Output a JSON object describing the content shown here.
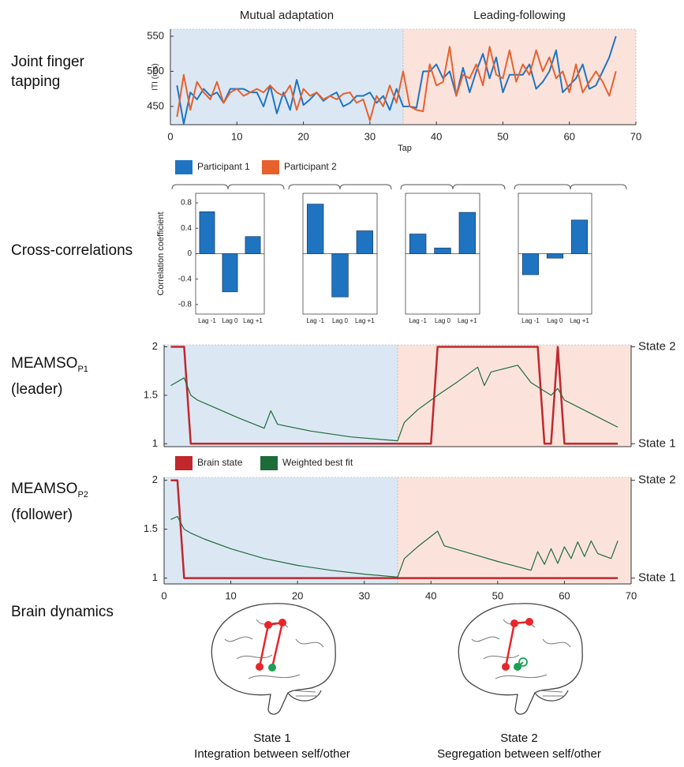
{
  "chart_data": [
    {
      "type": "line",
      "row_label": "Joint finger tapping",
      "xlabel": "Tap",
      "ylabel": "ITI (ms)",
      "xlim": [
        0,
        70
      ],
      "xticks": [
        0,
        10,
        20,
        30,
        40,
        50,
        60,
        70
      ],
      "ylim": [
        424,
        560
      ],
      "yticks": [
        450,
        500,
        550
      ],
      "regions": [
        {
          "label": "Mutual adaptation",
          "from": 0,
          "to": 35,
          "color": "#dbe8f4"
        },
        {
          "label": "Leading-following",
          "from": 35,
          "to": 70,
          "color": "#fbe3dc"
        }
      ],
      "legend": true,
      "x": [
        1,
        2,
        3,
        4,
        5,
        6,
        7,
        8,
        9,
        10,
        11,
        12,
        13,
        14,
        15,
        16,
        17,
        18,
        19,
        20,
        21,
        22,
        23,
        24,
        25,
        26,
        27,
        28,
        29,
        30,
        31,
        32,
        33,
        34,
        35,
        36,
        37,
        38,
        39,
        40,
        41,
        42,
        43,
        44,
        45,
        46,
        47,
        48,
        49,
        50,
        51,
        52,
        53,
        54,
        55,
        56,
        57,
        58,
        59,
        60,
        61,
        62,
        63,
        64,
        65,
        66,
        67
      ],
      "series": [
        {
          "name": "Participant 1",
          "color": "#1f74c2",
          "values": [
            480,
            425,
            470,
            460,
            475,
            465,
            470,
            455,
            475,
            475,
            475,
            470,
            470,
            450,
            480,
            440,
            470,
            445,
            488,
            452,
            460,
            470,
            458,
            465,
            470,
            450,
            455,
            465,
            465,
            470,
            455,
            465,
            445,
            475,
            450,
            450,
            448,
            500,
            500,
            510,
            490,
            500,
            465,
            505,
            470,
            500,
            525,
            490,
            520,
            470,
            495,
            495,
            495,
            510,
            475,
            485,
            500,
            530,
            470,
            480,
            490,
            510,
            475,
            480,
            500,
            520,
            550
          ]
        },
        {
          "name": "Participant 2",
          "color": "#e8602c",
          "values": [
            435,
            495,
            445,
            485,
            470,
            460,
            485,
            455,
            470,
            475,
            465,
            470,
            475,
            470,
            480,
            470,
            465,
            480,
            445,
            475,
            465,
            470,
            460,
            465,
            460,
            468,
            470,
            455,
            460,
            430,
            465,
            450,
            480,
            455,
            500,
            450,
            445,
            443,
            510,
            480,
            485,
            535,
            465,
            495,
            490,
            510,
            480,
            535,
            495,
            490,
            530,
            485,
            510,
            495,
            530,
            500,
            520,
            490,
            500,
            470,
            510,
            470,
            485,
            500,
            485,
            465,
            500
          ]
        }
      ]
    },
    {
      "type": "bar",
      "row_label": "Cross-correlations",
      "ylabel": "Correlation coefficient",
      "categories": [
        "Lag -1",
        "Lag 0",
        "Lag +1"
      ],
      "values": [
        0.66,
        -0.6,
        0.27
      ],
      "color": "#1f74c2",
      "ylim": [
        -0.95,
        0.95
      ],
      "yticks": [
        -0.8,
        -0.4,
        0,
        0.4,
        0.8
      ]
    },
    {
      "type": "bar",
      "categories": [
        "Lag -1",
        "Lag 0",
        "Lag +1"
      ],
      "values": [
        0.78,
        -0.68,
        0.36
      ],
      "color": "#1f74c2",
      "ylim": [
        -0.95,
        0.95
      ]
    },
    {
      "type": "bar",
      "categories": [
        "Lag -1",
        "Lag 0",
        "Lag +1"
      ],
      "values": [
        0.31,
        0.09,
        0.65
      ],
      "color": "#1f74c2",
      "ylim": [
        -0.95,
        0.95
      ]
    },
    {
      "type": "bar",
      "categories": [
        "Lag -1",
        "Lag 0",
        "Lag +1"
      ],
      "values": [
        -0.33,
        -0.07,
        0.53
      ],
      "color": "#1f74c2",
      "ylim": [
        -0.95,
        0.95
      ]
    },
    {
      "type": "line",
      "row_label": {
        "text": "MEAMSO",
        "subscript": "P1",
        "note": "(leader)"
      },
      "xlim": [
        0,
        70
      ],
      "ylim": [
        0.97,
        2.02
      ],
      "yticks": [
        1,
        1.5,
        2
      ],
      "y2lim": [
        0.97,
        2.02
      ],
      "y2ticks": [
        {
          "value": 1,
          "label": "State 1"
        },
        {
          "value": 2,
          "label": "State 2"
        }
      ],
      "regions": [
        {
          "from": 0,
          "to": 35,
          "color": "#dbe8f4"
        },
        {
          "from": 35,
          "to": 70,
          "color": "#fbe3dc"
        }
      ],
      "legend": true,
      "series": [
        {
          "name": "Brain state",
          "color": "#c1272d",
          "x": [
            1,
            3,
            4,
            40,
            41,
            56,
            57,
            58,
            59,
            60,
            68
          ],
          "values": [
            2,
            2,
            1,
            1,
            2,
            2,
            1,
            1,
            2,
            1,
            1
          ]
        },
        {
          "name": "Weighted best fit",
          "color": "#1e6b3a",
          "x": [
            1,
            3,
            4,
            5,
            8,
            11,
            15,
            16,
            17,
            22,
            28,
            35,
            36,
            38,
            41,
            44,
            47,
            48,
            49,
            53,
            55,
            58,
            59,
            60,
            64,
            68
          ],
          "values": [
            1.6,
            1.68,
            1.5,
            1.45,
            1.36,
            1.27,
            1.16,
            1.34,
            1.2,
            1.13,
            1.07,
            1.03,
            1.22,
            1.35,
            1.5,
            1.64,
            1.79,
            1.6,
            1.74,
            1.81,
            1.63,
            1.5,
            1.57,
            1.45,
            1.31,
            1.17
          ]
        }
      ]
    },
    {
      "type": "line",
      "row_label": {
        "text": "MEAMSO",
        "subscript": "P2",
        "note": "(follower)"
      },
      "xlim": [
        0,
        70
      ],
      "xticks": [
        0,
        10,
        20,
        30,
        40,
        50,
        60,
        70
      ],
      "ylim": [
        0.94,
        2.03
      ],
      "yticks": [
        1,
        1.5,
        2
      ],
      "y2lim": [
        0.94,
        2.03
      ],
      "y2ticks": [
        {
          "value": 1,
          "label": "State 1"
        },
        {
          "value": 2,
          "label": "State 2"
        }
      ],
      "regions": [
        {
          "from": 0,
          "to": 35,
          "color": "#dbe8f4"
        },
        {
          "from": 35,
          "to": 70,
          "color": "#fbe3dc"
        }
      ],
      "series": [
        {
          "name": "Brain state",
          "color": "#c1272d",
          "x": [
            1,
            2,
            3,
            68
          ],
          "values": [
            2,
            2,
            1,
            1
          ]
        },
        {
          "name": "Weighted best fit",
          "color": "#1e6b3a",
          "x": [
            1,
            2,
            3,
            4,
            6,
            10,
            15,
            20,
            25,
            30,
            35,
            36,
            38,
            41,
            42,
            46,
            50,
            55,
            56,
            57,
            58,
            59,
            60,
            61,
            62,
            63,
            64,
            65,
            67,
            68
          ],
          "values": [
            1.6,
            1.63,
            1.5,
            1.46,
            1.4,
            1.3,
            1.2,
            1.13,
            1.08,
            1.04,
            1.01,
            1.2,
            1.32,
            1.48,
            1.33,
            1.25,
            1.17,
            1.08,
            1.27,
            1.14,
            1.3,
            1.15,
            1.32,
            1.2,
            1.37,
            1.22,
            1.38,
            1.25,
            1.2,
            1.38
          ]
        }
      ]
    }
  ],
  "brain_dynamics": {
    "label": "Brain dynamics",
    "states": [
      {
        "title": "State 1",
        "caption": "Integration between self/other"
      },
      {
        "title": "State 2",
        "caption": "Segregation between self/other"
      }
    ]
  }
}
